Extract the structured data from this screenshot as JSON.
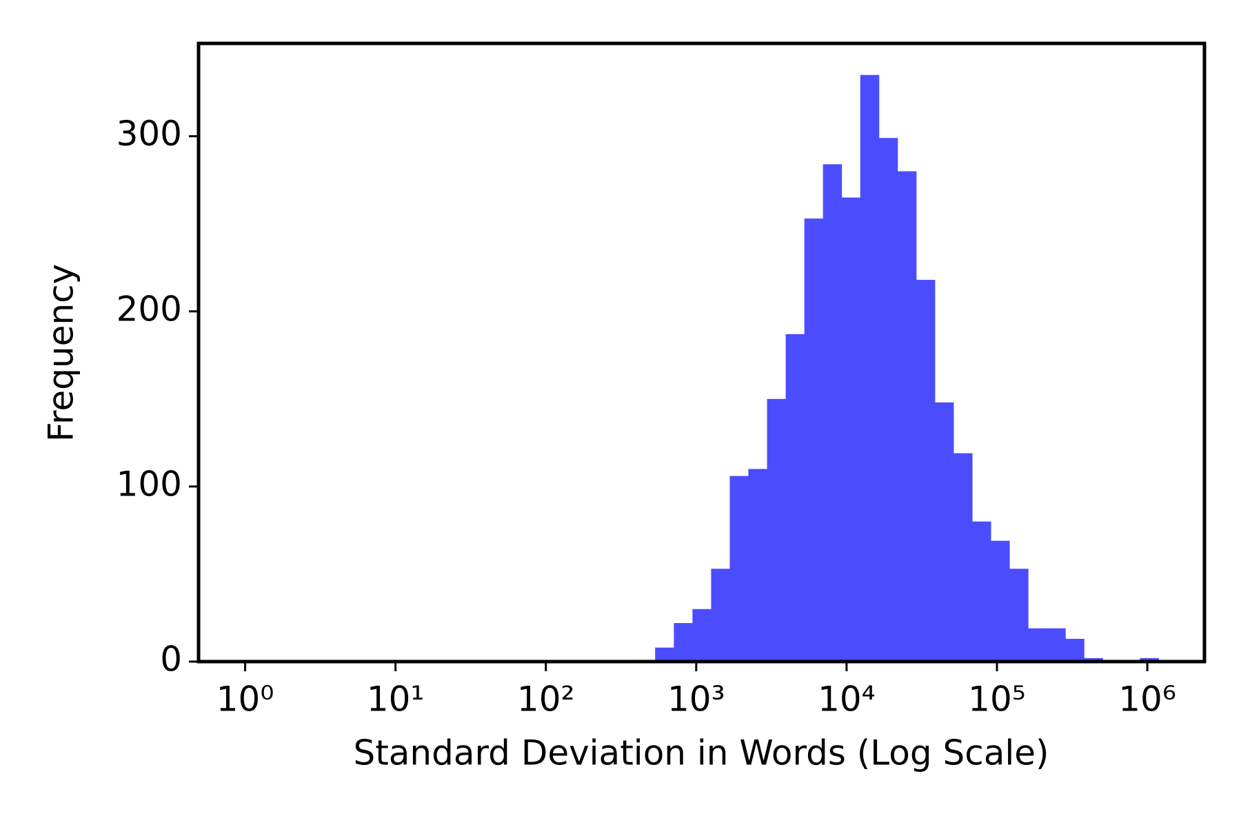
{
  "chart_data": {
    "type": "histogram",
    "xlabel": "Standard Deviation in Words (Log Scale)",
    "ylabel": "Frequency",
    "bins": [
      401,
      533,
      710,
      944,
      1256,
      1671,
      2223,
      2958,
      3936,
      5236,
      6966,
      9268,
      12331,
      16406,
      21827,
      29040,
      38637,
      51404,
      68391,
      90991,
      121060,
      161065,
      214289,
      285102,
      379315,
      504661,
      671430,
      893305,
      1188502
    ],
    "counts": [
      1,
      8,
      22,
      30,
      53,
      106,
      110,
      150,
      187,
      253,
      284,
      265,
      335,
      299,
      280,
      218,
      148,
      119,
      80,
      69,
      53,
      19,
      19,
      13,
      2,
      1,
      0,
      2
    ],
    "color": "#4c4cff",
    "xscale": "log",
    "xlim": [
      0.49,
      2400000
    ],
    "xticks": [
      {
        "value": 1,
        "label": "10⁰"
      },
      {
        "value": 10,
        "label": "10¹"
      },
      {
        "value": 100,
        "label": "10²"
      },
      {
        "value": 1000,
        "label": "10³"
      },
      {
        "value": 10000,
        "label": "10⁴"
      },
      {
        "value": 100000,
        "label": "10⁵"
      },
      {
        "value": 1000000,
        "label": "10⁶"
      }
    ],
    "ylim": [
      0,
      353
    ],
    "yticks": [
      0,
      100,
      200,
      300
    ]
  }
}
